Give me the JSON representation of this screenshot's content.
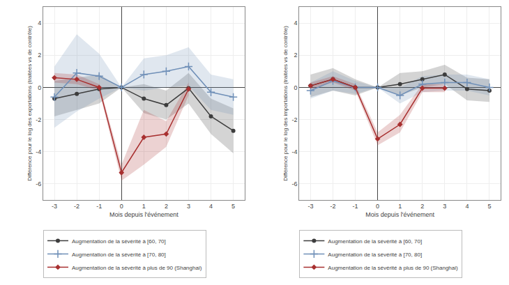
{
  "chart_data": [
    {
      "type": "line",
      "xlabel": "Mois depuis l'événement",
      "ylabel": "Différence pour le log des exportations (traitées vs de contrôle)",
      "x": [
        -3,
        -2,
        -1,
        0,
        1,
        2,
        3,
        4,
        5
      ],
      "xlim": [
        -3.5,
        5.5
      ],
      "xticks": [
        -3,
        -2,
        -1,
        0,
        1,
        2,
        3,
        4,
        5
      ],
      "ylim": [
        -7,
        5
      ],
      "yticks": [
        -6,
        -4,
        -2,
        0,
        2,
        4
      ],
      "grid": true,
      "legend": "below",
      "series": [
        {
          "name": "Augmentation de la sévérité à [60, 70]",
          "color": "#3d3d3d",
          "marker": "circle",
          "values": [
            -0.7,
            -0.4,
            -0.1,
            0.0,
            -0.7,
            -1.1,
            -0.05,
            -1.8,
            -2.7
          ],
          "lo": [
            -1.8,
            -1.4,
            -1.0,
            0.0,
            -1.6,
            -2.0,
            -1.0,
            -2.9,
            -4.1
          ],
          "hi": [
            0.4,
            0.6,
            0.8,
            0.0,
            0.2,
            -0.2,
            0.9,
            -0.7,
            -1.3
          ]
        },
        {
          "name": "Augmentation de la sévérité à [70, 80]",
          "color": "#7090b8",
          "marker": "plus",
          "values": [
            -0.6,
            0.9,
            0.7,
            0.0,
            0.8,
            1.0,
            1.3,
            -0.3,
            -0.6
          ],
          "lo": [
            -2.5,
            -1.5,
            -0.7,
            0.0,
            -0.2,
            0.0,
            0.1,
            -1.4,
            -1.7
          ],
          "hi": [
            1.3,
            3.3,
            2.1,
            0.0,
            1.8,
            2.0,
            2.5,
            0.8,
            0.5
          ]
        },
        {
          "name": "Augmentation de la sévérité à plus de 90 (Shanghai)",
          "color": "#a83030",
          "marker": "diamond",
          "values": [
            0.6,
            0.5,
            0.0,
            -5.3,
            -3.1,
            -2.9,
            -0.1,
            null,
            null
          ],
          "lo": [
            0.3,
            0.2,
            -0.2,
            -5.8,
            -4.8,
            -3.7,
            -0.5,
            null,
            null
          ],
          "hi": [
            0.9,
            0.8,
            0.2,
            -4.8,
            -1.4,
            -2.1,
            0.3,
            null,
            null
          ]
        }
      ]
    },
    {
      "type": "line",
      "xlabel": "Mois depuis l'événement",
      "ylabel": "Différence pour le log des importations (traitées vs de contrôle)",
      "x": [
        -3,
        -2,
        -1,
        0,
        1,
        2,
        3,
        4,
        5
      ],
      "xlim": [
        -3.5,
        5.5
      ],
      "xticks": [
        -3,
        -2,
        -1,
        0,
        1,
        2,
        3,
        4,
        5
      ],
      "ylim": [
        -7,
        5
      ],
      "yticks": [
        -6,
        -4,
        -2,
        0,
        2,
        4
      ],
      "grid": true,
      "legend": "below",
      "series": [
        {
          "name": "Augmentation de la sévérité à [60, 70]",
          "color": "#3d3d3d",
          "marker": "circle",
          "values": [
            0.1,
            0.5,
            0.0,
            0.0,
            0.2,
            0.5,
            0.8,
            -0.1,
            -0.2
          ],
          "lo": [
            -0.6,
            -0.2,
            -0.5,
            0.0,
            -0.5,
            0.0,
            0.2,
            -0.8,
            -0.9
          ],
          "hi": [
            0.8,
            1.2,
            0.5,
            0.0,
            0.9,
            1.0,
            1.4,
            0.6,
            0.5
          ]
        },
        {
          "name": "Augmentation de la sévérité à [70, 80]",
          "color": "#7090b8",
          "marker": "plus",
          "values": [
            -0.2,
            0.4,
            0.0,
            0.0,
            -0.5,
            0.2,
            0.3,
            0.3,
            0.0
          ],
          "lo": [
            -0.7,
            -0.2,
            -0.4,
            0.0,
            -1.0,
            -0.3,
            -0.2,
            -0.2,
            -0.5
          ],
          "hi": [
            0.3,
            1.0,
            0.4,
            0.0,
            0.0,
            0.7,
            0.8,
            0.8,
            0.5
          ]
        },
        {
          "name": "Augmentation de la sévérité à plus de 90 (Shanghai)",
          "color": "#a83030",
          "marker": "diamond",
          "values": [
            0.1,
            0.5,
            0.0,
            -3.2,
            -2.3,
            -0.05,
            -0.05,
            null,
            null
          ],
          "lo": [
            -0.1,
            0.3,
            -0.2,
            -3.6,
            -2.8,
            -0.3,
            -0.3,
            null,
            null
          ],
          "hi": [
            0.3,
            0.7,
            0.2,
            -2.8,
            -1.7,
            0.2,
            0.2,
            null,
            null
          ]
        }
      ]
    }
  ]
}
